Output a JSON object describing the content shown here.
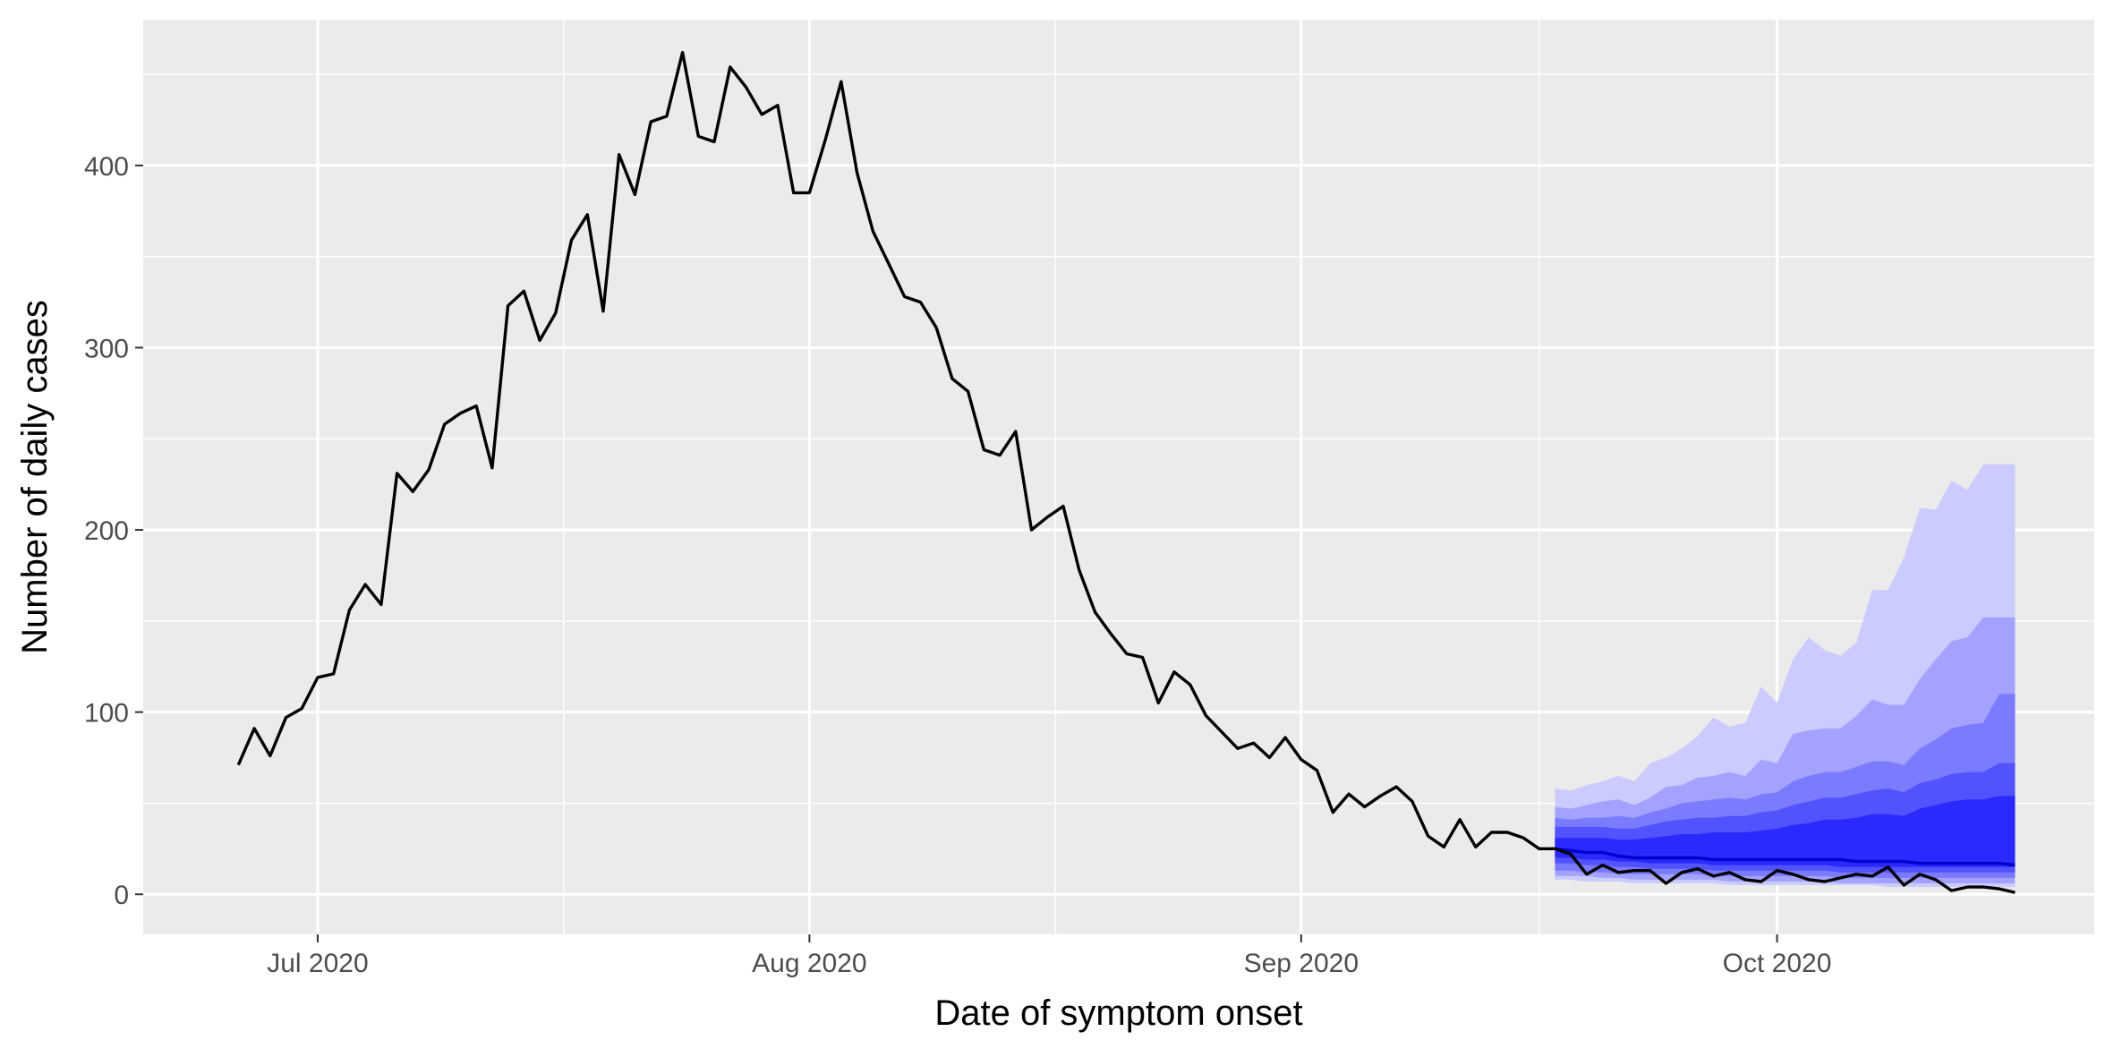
{
  "chart_data": {
    "type": "line",
    "title": "",
    "xlabel": "Date of symptom onset",
    "ylabel": "Number of daily cases",
    "xlim": [
      "2020-06-20",
      "2020-10-21"
    ],
    "ylim": [
      -22,
      480
    ],
    "x_ticks": [
      {
        "date": "2020-07-01",
        "label": "Jul 2020"
      },
      {
        "date": "2020-08-01",
        "label": "Aug 2020"
      },
      {
        "date": "2020-09-01",
        "label": "Sep 2020"
      },
      {
        "date": "2020-10-01",
        "label": "Oct 2020"
      }
    ],
    "y_ticks": [
      0,
      100,
      200,
      300,
      400
    ],
    "y_minor": [
      50,
      150,
      250,
      350,
      450
    ],
    "grid": true,
    "background": "#ebebeb",
    "grid_color": "#ffffff",
    "observed": {
      "color": "#000000",
      "start": "2020-06-26",
      "values": [
        71,
        91,
        76,
        97,
        102,
        119,
        121,
        156,
        170,
        159,
        231,
        221,
        233,
        258,
        264,
        268,
        234,
        323,
        331,
        304,
        319,
        359,
        373,
        320,
        406,
        384,
        424,
        427,
        462,
        416,
        413,
        454,
        443,
        428,
        433,
        385,
        385,
        414,
        446,
        396,
        364,
        346,
        328,
        325,
        311,
        283,
        276,
        244,
        241,
        254,
        200,
        207,
        213,
        178,
        155,
        143,
        132,
        130,
        105,
        122,
        115,
        98,
        89,
        80,
        83,
        75,
        86,
        74,
        68,
        45,
        55,
        48,
        54,
        59,
        51,
        32,
        26,
        41,
        26,
        34,
        34,
        31,
        25,
        25,
        22,
        11,
        16,
        12,
        13,
        13,
        6,
        12,
        14,
        10,
        12,
        8,
        7,
        13,
        11,
        8,
        7,
        9,
        11,
        10,
        15,
        5,
        11,
        8,
        2,
        4,
        4,
        3,
        1
      ]
    },
    "forecast": {
      "start": "2020-09-17",
      "median_color": "#0000cc",
      "median": [
        25,
        24,
        23,
        23,
        21,
        20,
        20,
        20,
        20,
        20,
        19,
        19,
        19,
        19,
        19,
        19,
        19,
        19,
        19,
        18,
        18,
        18,
        18,
        17,
        17,
        17,
        17,
        17,
        17,
        16
      ],
      "bands": [
        {
          "level": "90%",
          "color": "#cbcbff",
          "lower": [
            8,
            8,
            7,
            7,
            7,
            6,
            6,
            6,
            6,
            6,
            6,
            5,
            5,
            5,
            5,
            5,
            5,
            5,
            5,
            5,
            5,
            4,
            4,
            4,
            4,
            4,
            4,
            4,
            4,
            4
          ],
          "upper": [
            58,
            57,
            60,
            62,
            65,
            62,
            72,
            75,
            80,
            87,
            97,
            92,
            94,
            114,
            105,
            129,
            141,
            134,
            131,
            138,
            167,
            167,
            185,
            212,
            211,
            227,
            222,
            236,
            236,
            236
          ]
        },
        {
          "level": "75%",
          "color": "#a3a3ff",
          "lower": [
            10,
            10,
            10,
            9,
            9,
            8,
            8,
            8,
            8,
            8,
            8,
            7,
            7,
            7,
            7,
            7,
            7,
            7,
            6,
            6,
            6,
            6,
            6,
            6,
            6,
            6,
            6,
            6,
            6,
            6
          ],
          "upper": [
            48,
            47,
            49,
            51,
            52,
            49,
            53,
            59,
            60,
            64,
            65,
            67,
            65,
            74,
            72,
            88,
            90,
            91,
            91,
            98,
            107,
            104,
            104,
            118,
            129,
            139,
            141,
            152,
            152,
            152
          ]
        },
        {
          "level": "50%",
          "color": "#7b7bff",
          "lower": [
            13,
            13,
            12,
            12,
            11,
            11,
            11,
            11,
            11,
            11,
            10,
            10,
            10,
            10,
            10,
            10,
            10,
            10,
            9,
            9,
            9,
            9,
            9,
            9,
            9,
            9,
            9,
            9,
            9,
            9
          ],
          "upper": [
            42,
            41,
            42,
            42,
            43,
            42,
            45,
            47,
            50,
            51,
            52,
            53,
            52,
            55,
            56,
            62,
            65,
            67,
            67,
            70,
            73,
            73,
            71,
            80,
            85,
            91,
            93,
            94,
            110,
            110
          ]
        },
        {
          "level": "25%",
          "color": "#5252ff",
          "lower": [
            17,
            17,
            16,
            16,
            15,
            15,
            14,
            14,
            14,
            14,
            13,
            13,
            13,
            13,
            13,
            13,
            13,
            13,
            12,
            12,
            12,
            12,
            12,
            12,
            12,
            12,
            12,
            12,
            12,
            12
          ],
          "upper": [
            37,
            37,
            37,
            37,
            36,
            36,
            38,
            40,
            41,
            42,
            42,
            43,
            43,
            45,
            46,
            49,
            51,
            53,
            53,
            55,
            57,
            58,
            56,
            61,
            63,
            66,
            67,
            67,
            72,
            72
          ]
        },
        {
          "level": "10%",
          "color": "#2a2aff",
          "lower": [
            20,
            20,
            19,
            19,
            18,
            18,
            17,
            17,
            17,
            17,
            16,
            16,
            16,
            16,
            16,
            16,
            16,
            16,
            15,
            15,
            15,
            15,
            15,
            15,
            15,
            15,
            15,
            15,
            15,
            15
          ],
          "upper": [
            31,
            31,
            31,
            31,
            30,
            30,
            31,
            32,
            33,
            33,
            34,
            34,
            34,
            35,
            36,
            38,
            39,
            41,
            41,
            42,
            44,
            44,
            43,
            47,
            49,
            51,
            52,
            52,
            54,
            54
          ]
        }
      ]
    }
  }
}
